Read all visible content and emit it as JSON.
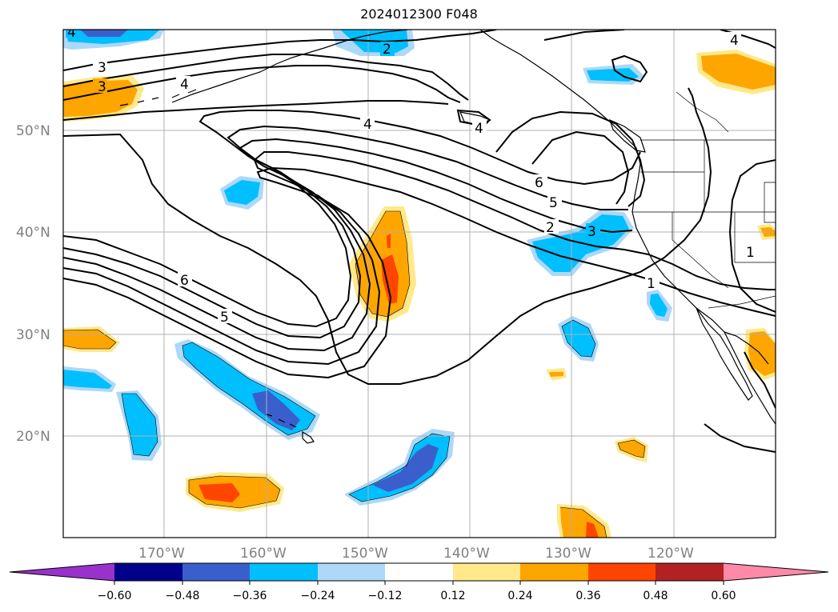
{
  "title": "2024012300 F048",
  "map": {
    "lat_labels": [
      "50°N",
      "40°N",
      "30°N",
      "20°N"
    ],
    "lon_labels": [
      "170°W",
      "160°W",
      "150°W",
      "140°W",
      "130°W",
      "120°W"
    ],
    "contour_labels": [
      "3",
      "3",
      "4",
      "2",
      "4",
      "4",
      "6",
      "5",
      "4",
      "6",
      "5",
      "2",
      "3",
      "1",
      "1",
      "4"
    ]
  },
  "colorbar": {
    "tick_labels": [
      "−0.60",
      "−0.48",
      "−0.36",
      "−0.24",
      "−0.12",
      "0.12",
      "0.24",
      "0.36",
      "0.48",
      "0.60"
    ],
    "colors": [
      "#9932cc",
      "#00008b",
      "#3a5fcd",
      "#00bfff",
      "#add8f7",
      "#ffffff",
      "#ffe98a",
      "#ffa500",
      "#ff4500",
      "#b22222",
      "#ff89a9"
    ]
  }
}
